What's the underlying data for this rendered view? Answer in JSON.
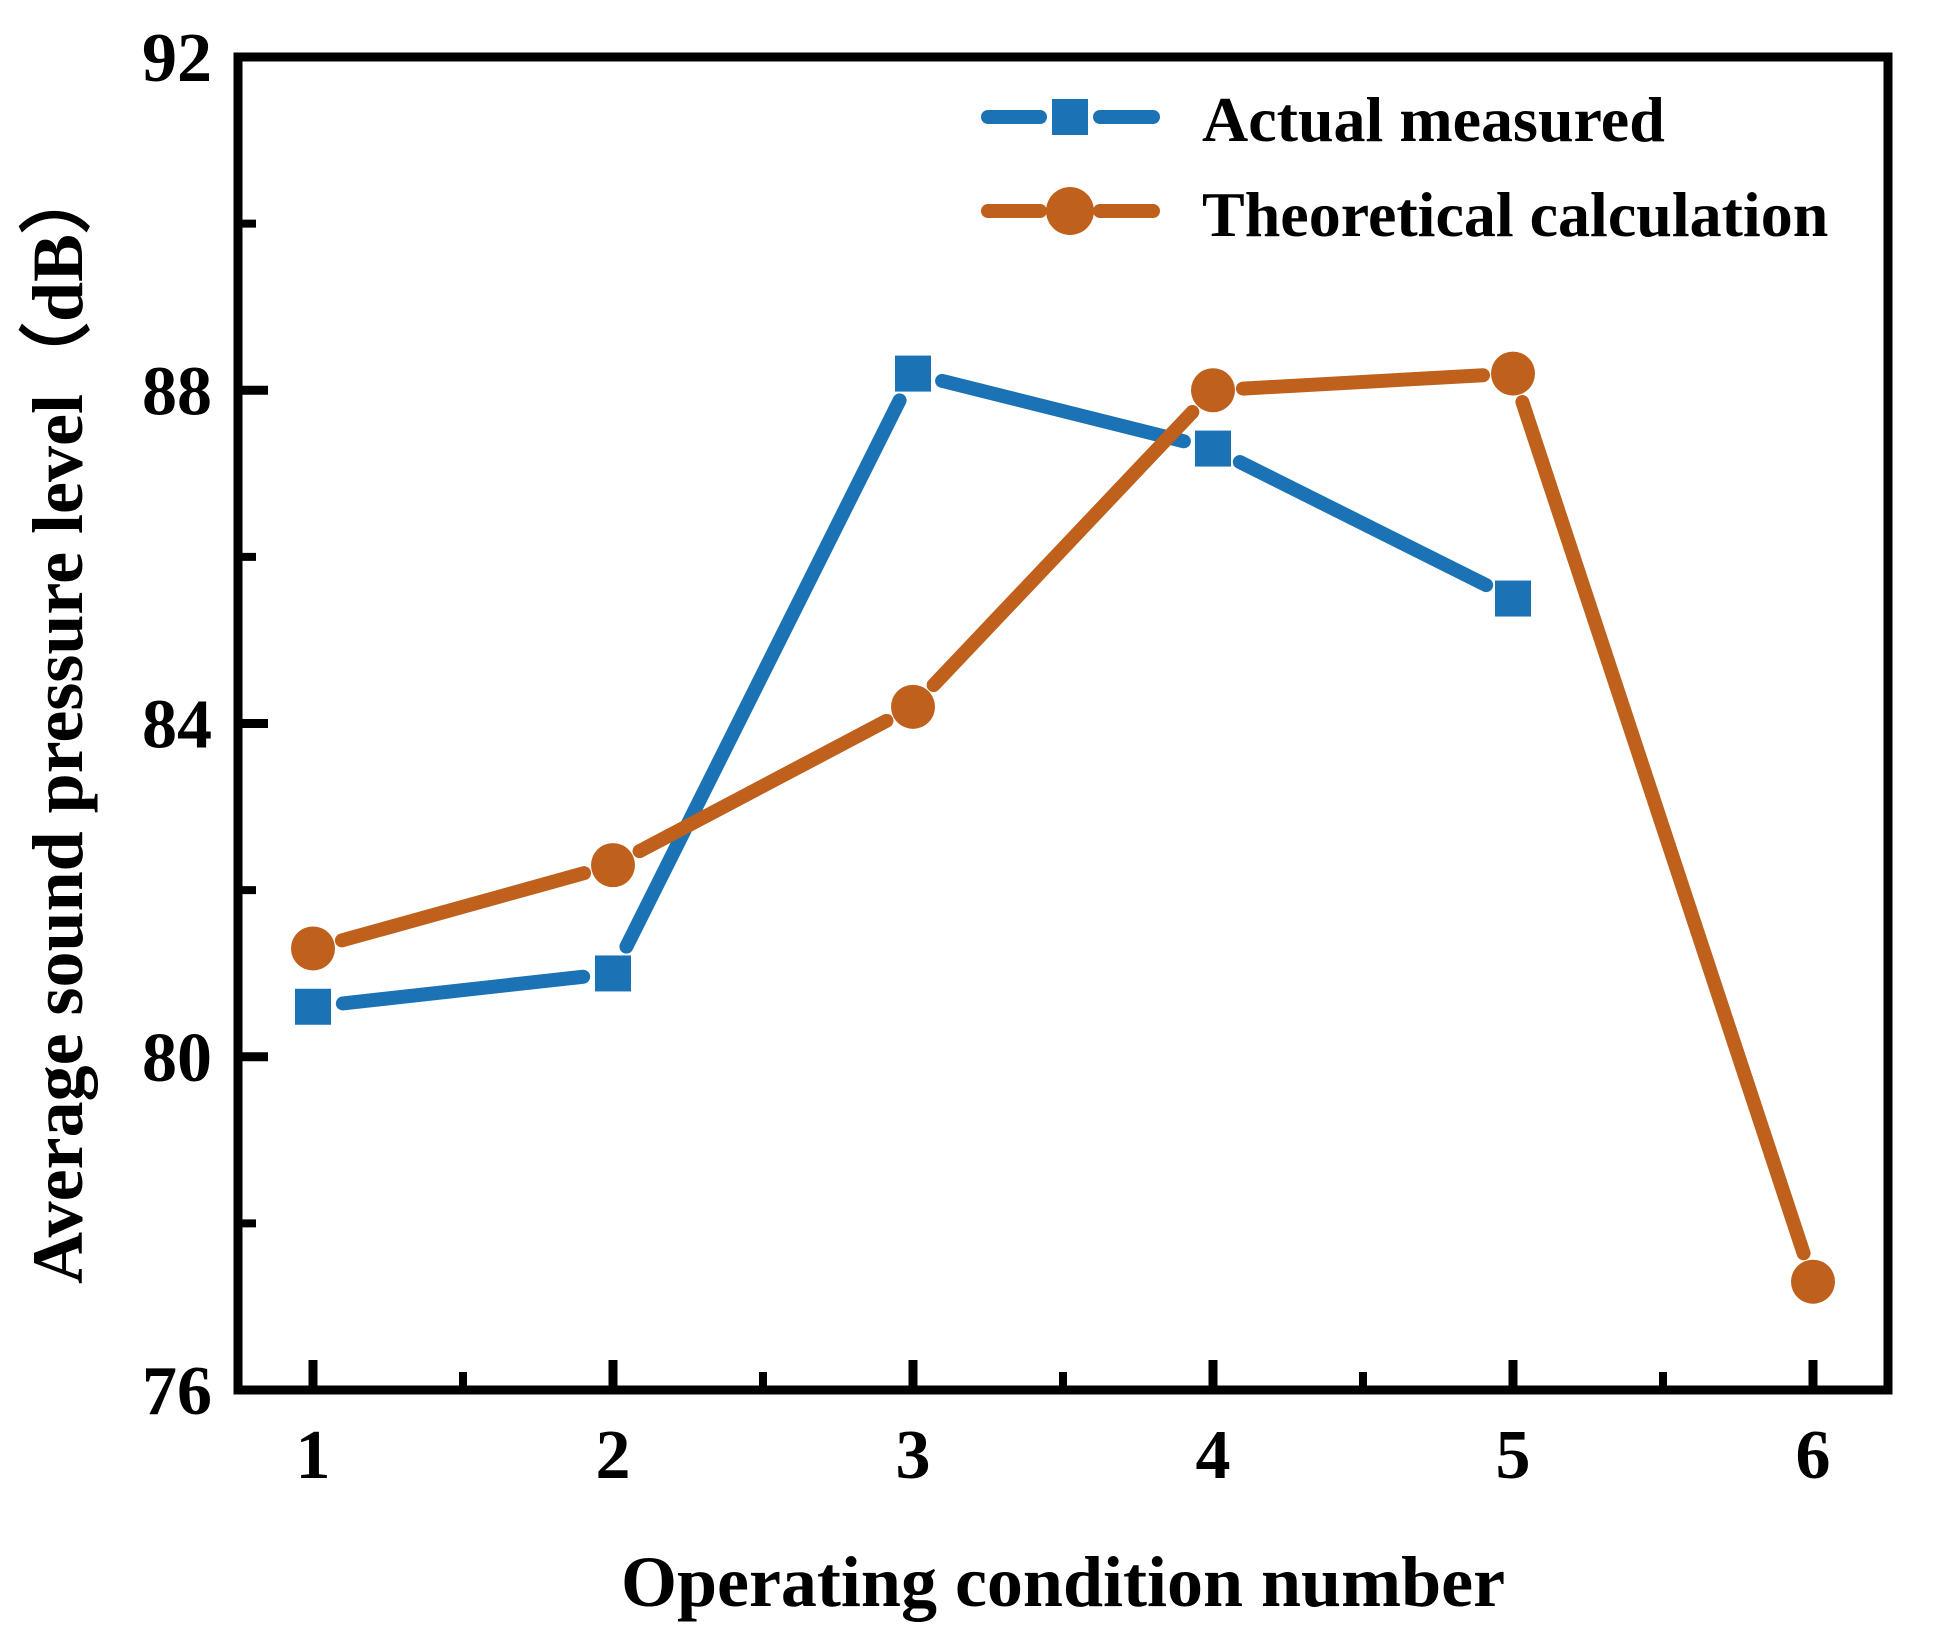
{
  "figure": {
    "background": "#ffffff",
    "frame_color": "#000000"
  },
  "chart_data": {
    "type": "line",
    "title": "",
    "xlabel": "Operating condition number",
    "ylabel": "Average sound pressure level（dB）",
    "xlim": [
      0.75,
      6.25
    ],
    "ylim": [
      76,
      92
    ],
    "xticks": [
      1,
      2,
      3,
      4,
      5,
      6
    ],
    "xticks_minor": [
      1.5,
      2.5,
      3.5,
      4.5,
      5.5
    ],
    "yticks": [
      76,
      80,
      84,
      88,
      92
    ],
    "yticks_minor": [
      78,
      82,
      86,
      90
    ],
    "grid": false,
    "legend_position": "top-right-inside",
    "series": [
      {
        "name": "Actual measured",
        "marker": "square",
        "color": "#1b72b4",
        "x": [
          1,
          2,
          3,
          4,
          5
        ],
        "values": [
          80.6,
          81.0,
          88.2,
          87.3,
          85.5
        ]
      },
      {
        "name": "Theoretical calculation",
        "marker": "circle",
        "color": "#bf611c",
        "x": [
          1,
          2,
          3,
          4,
          5,
          6
        ],
        "values": [
          81.3,
          82.3,
          84.2,
          88.0,
          88.2,
          77.3
        ]
      }
    ]
  }
}
